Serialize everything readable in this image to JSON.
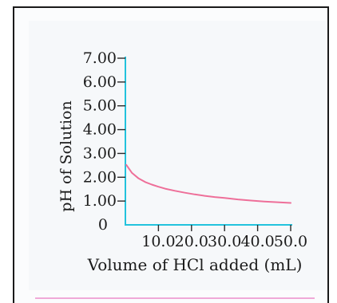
{
  "chart_data": {
    "type": "line",
    "xlabel": "Volume of HCl added (mL)",
    "ylabel": "pH of Solution",
    "xlim": [
      0,
      50
    ],
    "ylim": [
      0,
      7
    ],
    "x_ticks": [
      10,
      20,
      30,
      40,
      50
    ],
    "x_tick_labels": [
      "10.0",
      "20.0",
      "30.0",
      "40.0",
      "50.0"
    ],
    "y_ticks": [
      0,
      1,
      2,
      3,
      4,
      5,
      6,
      7
    ],
    "y_tick_labels": [
      "0",
      "1.00",
      "2.00",
      "3.00",
      "4.00",
      "5.00",
      "6.00",
      "7.00"
    ],
    "grid": false,
    "series": [
      {
        "color": "#ee6f99",
        "x": [
          0.3,
          2,
          4,
          6,
          8,
          10,
          12,
          15,
          18,
          21,
          24,
          27,
          30,
          34,
          38,
          42,
          46,
          50
        ],
        "y": [
          2.52,
          2.18,
          1.95,
          1.8,
          1.69,
          1.6,
          1.52,
          1.43,
          1.35,
          1.28,
          1.22,
          1.17,
          1.13,
          1.07,
          1.02,
          0.98,
          0.95,
          0.92
        ]
      }
    ]
  }
}
